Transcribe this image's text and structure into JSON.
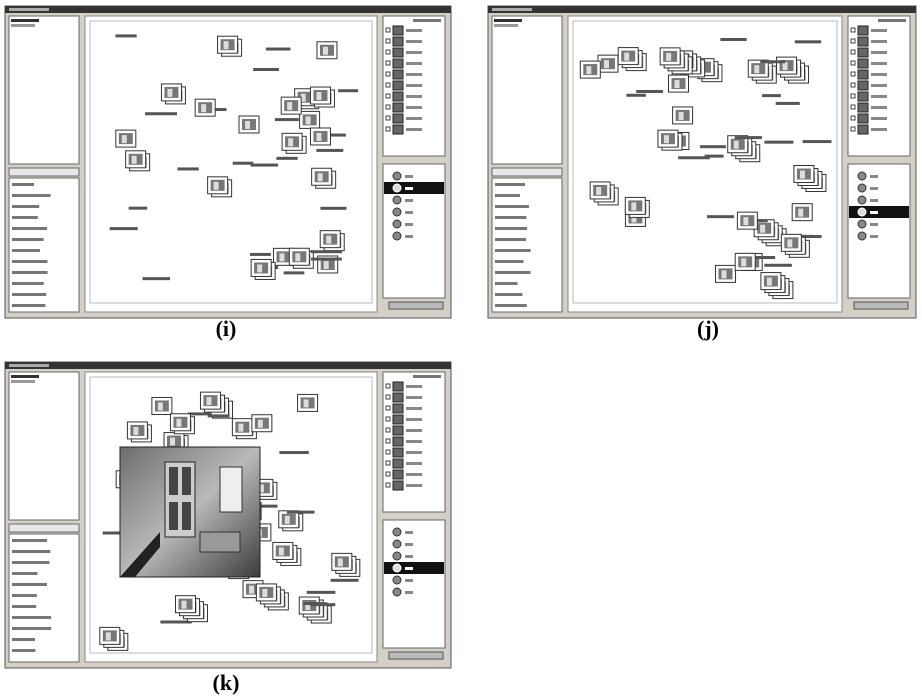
{
  "figure": {
    "panels": [
      {
        "label": "(i)"
      },
      {
        "label": "(j)"
      },
      {
        "label": "(k)"
      }
    ]
  }
}
